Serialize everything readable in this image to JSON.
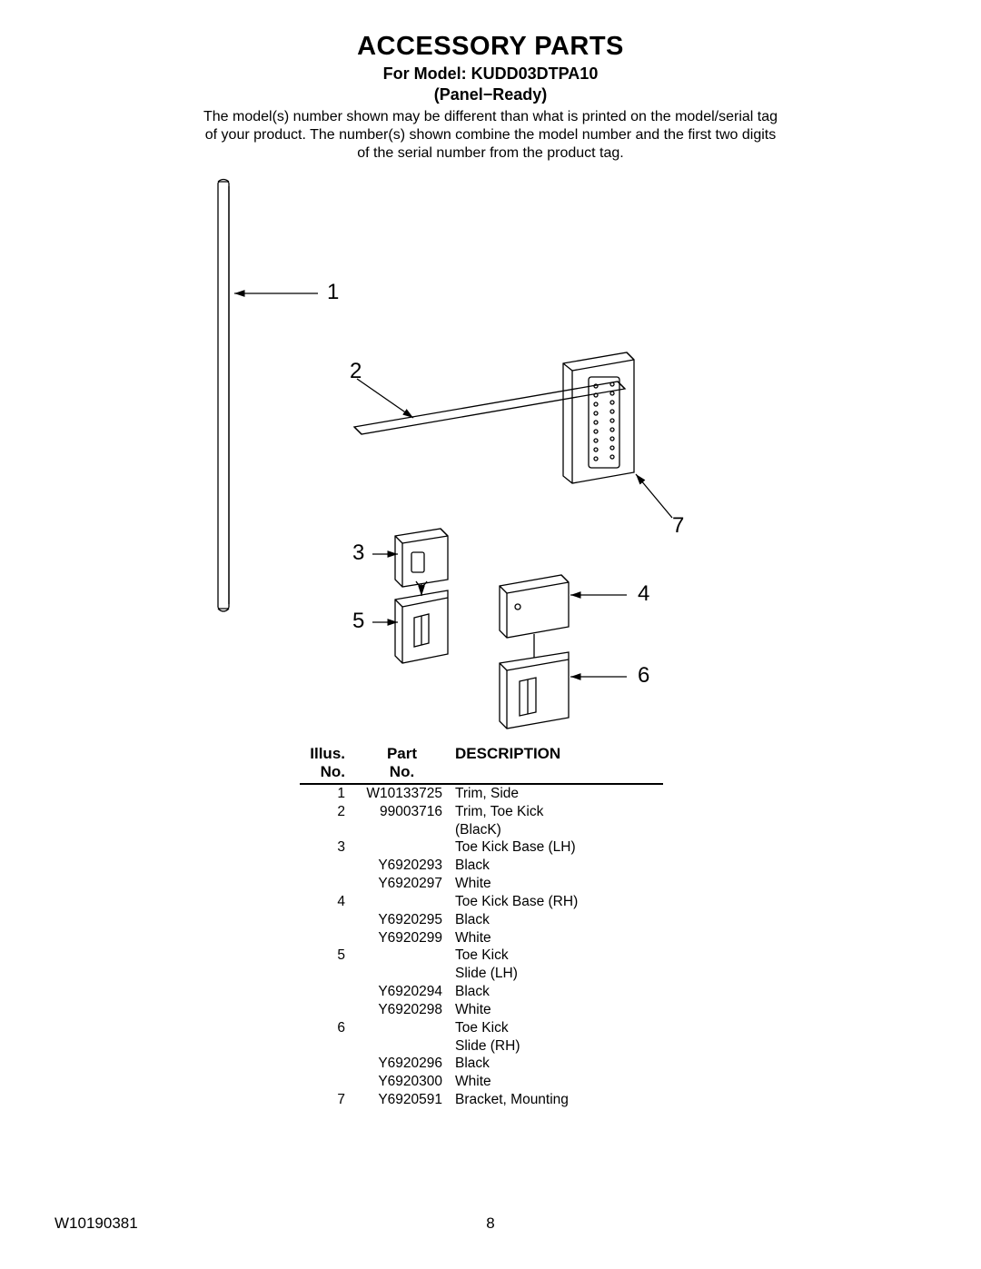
{
  "header": {
    "title": "ACCESSORY PARTS",
    "model_line": "For Model: KUDD03DTPA10",
    "variant": "(Panel−Ready)",
    "note": "The model(s) number shown may be different than what is printed on the model/serial tag of your product. The number(s) shown combine the model number and the first two digits of the serial number from the product tag."
  },
  "diagram": {
    "callouts": [
      "1",
      "2",
      "3",
      "4",
      "5",
      "6",
      "7"
    ],
    "callout_fontsize": 24,
    "stroke": "#000000",
    "stroke_width": 1.3,
    "background": "#ffffff"
  },
  "table": {
    "headers": {
      "illus": "Illus.\nNo.",
      "part": "Part\nNo.",
      "desc": "DESCRIPTION"
    },
    "rows": [
      {
        "illus": "1",
        "part": "W10133725",
        "desc": "Trim, Side"
      },
      {
        "illus": "2",
        "part": "99003716",
        "desc": "Trim, Toe Kick"
      },
      {
        "illus": "",
        "part": "",
        "desc": "(BlacK)"
      },
      {
        "illus": "3",
        "part": "",
        "desc": "Toe Kick Base (LH)"
      },
      {
        "illus": "",
        "part": "Y6920293",
        "desc": "Black"
      },
      {
        "illus": "",
        "part": "Y6920297",
        "desc": "White"
      },
      {
        "illus": "4",
        "part": "",
        "desc": "Toe Kick Base (RH)"
      },
      {
        "illus": "",
        "part": "Y6920295",
        "desc": "Black"
      },
      {
        "illus": "",
        "part": "Y6920299",
        "desc": "White"
      },
      {
        "illus": "5",
        "part": "",
        "desc": "Toe Kick"
      },
      {
        "illus": "",
        "part": "",
        "desc": "Slide (LH)"
      },
      {
        "illus": "",
        "part": "Y6920294",
        "desc": "Black"
      },
      {
        "illus": "",
        "part": "Y6920298",
        "desc": "White"
      },
      {
        "illus": "6",
        "part": "",
        "desc": "Toe Kick"
      },
      {
        "illus": "",
        "part": "",
        "desc": "Slide (RH)"
      },
      {
        "illus": "",
        "part": "Y6920296",
        "desc": "Black"
      },
      {
        "illus": "",
        "part": "Y6920300",
        "desc": "White"
      },
      {
        "illus": "7",
        "part": "Y6920591",
        "desc": "Bracket, Mounting"
      }
    ]
  },
  "footer": {
    "doc_no": "W10190381",
    "page_no": "8"
  }
}
